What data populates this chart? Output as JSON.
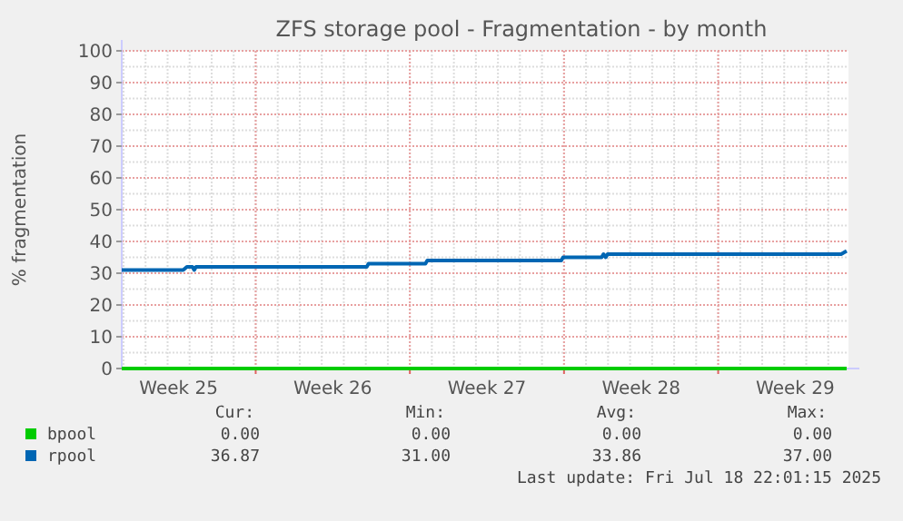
{
  "chart_data": {
    "type": "line",
    "title": "ZFS storage pool - Fragmentation - by month",
    "ylabel": "% fragmentation",
    "xlim": [
      "2025-06-15T22:01",
      "2025-07-18T22:01"
    ],
    "xticks": [
      {
        "value": "2025-06-18T12:00",
        "label": "Week 25"
      },
      {
        "value": "2025-06-22T00:00",
        "label": null
      },
      {
        "value": "2025-06-25T12:00",
        "label": "Week 26"
      },
      {
        "value": "2025-06-29T00:00",
        "label": null
      },
      {
        "value": "2025-07-02T12:00",
        "label": "Week 27"
      },
      {
        "value": "2025-07-06T00:00",
        "label": null
      },
      {
        "value": "2025-07-09T12:00",
        "label": "Week 28"
      },
      {
        "value": "2025-07-13T00:00",
        "label": null
      },
      {
        "value": "2025-07-16T12:00",
        "label": "Week 29"
      }
    ],
    "ylim": [
      0,
      100
    ],
    "yticks": [
      0,
      10,
      20,
      30,
      40,
      50,
      60,
      70,
      80,
      90,
      100
    ],
    "grid": true,
    "legend": "bottom left",
    "series": [
      {
        "name": "bpool",
        "color": "#00cc00",
        "x": [
          "2025-06-15T22:01",
          "2025-07-18T20:00"
        ],
        "values": [
          0,
          0
        ]
      },
      {
        "name": "rpool",
        "color": "#0066b3",
        "x": [
          "2025-06-15T22:01",
          "2025-06-18T17:00",
          "2025-06-18T21:00",
          "2025-06-19T03:00",
          "2025-06-19T05:00",
          "2025-06-19T07:00",
          "2025-06-27T01:00",
          "2025-06-27T03:00",
          "2025-06-29T17:00",
          "2025-06-29T19:00",
          "2025-07-05T21:00",
          "2025-07-05T23:00",
          "2025-07-07T17:00",
          "2025-07-07T19:00",
          "2025-07-07T21:30",
          "2025-07-07T23:30",
          "2025-07-18T14:00",
          "2025-07-18T20:00"
        ],
        "values": [
          31,
          31,
          32,
          32,
          31,
          32,
          32,
          33,
          33,
          34,
          34,
          35,
          35,
          36,
          35,
          36,
          36,
          37
        ]
      }
    ],
    "annotations": [
      "Cur:",
      "Min:",
      "Avg:",
      "Max:",
      "0.00",
      "0.00",
      "0.00",
      "0.00",
      "36.87",
      "31.00",
      "33.86",
      "37.00",
      "Last update: Fri Jul 18 22:01:15 2025"
    ]
  }
}
